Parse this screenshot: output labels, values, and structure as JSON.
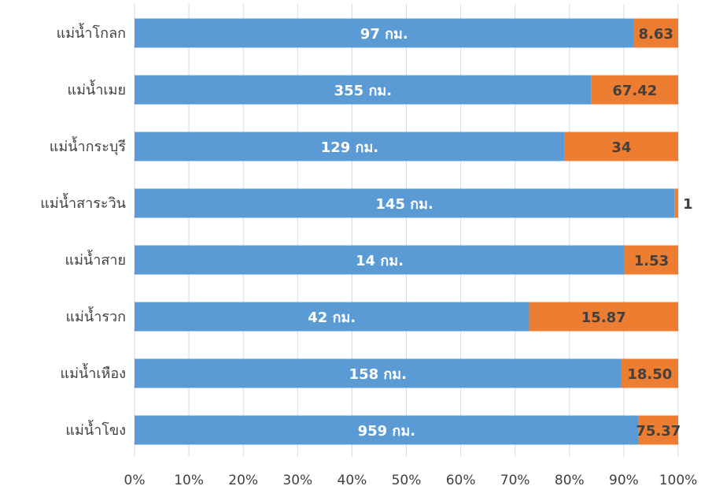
{
  "chart_data": {
    "type": "bar",
    "orientation": "horizontal",
    "stacking": "percent",
    "grid": true,
    "legend": "none",
    "xlim": [
      0,
      100
    ],
    "x_ticks": [
      "0%",
      "10%",
      "20%",
      "30%",
      "40%",
      "50%",
      "60%",
      "70%",
      "80%",
      "90%",
      "100%"
    ],
    "categories": [
      "แม่น้ำโกลก",
      "แม่น้ำเมย",
      "แม่น้ำกระบุรี",
      "แม่น้ำสาระวิน",
      "แม่น้ำสาย",
      "แม่น้ำรวก",
      "แม่น้ำเหือง",
      "แม่น้ำโขง"
    ],
    "series": [
      {
        "color": "#5b9bd5",
        "label_color": "#ffffff",
        "values": [
          97,
          355,
          129,
          145,
          14,
          42,
          158,
          959
        ],
        "labels": [
          "97 กม.",
          "355 กม.",
          "129 กม.",
          "145 กม.",
          "14 กม.",
          "42 กม.",
          "158 กม.",
          "959 กม."
        ]
      },
      {
        "color": "#ed7d31",
        "label_color": "#404040",
        "values": [
          8.63,
          67.42,
          34,
          1,
          1.53,
          15.87,
          18.5,
          75.37
        ],
        "labels": [
          "8.63",
          "67.42",
          "34",
          "1",
          "1.53",
          "15.87",
          "18.50",
          "75.37"
        ]
      }
    ]
  }
}
